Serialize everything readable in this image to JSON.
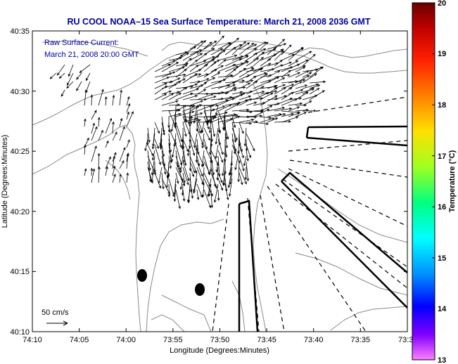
{
  "title": "RU COOL  NOAA–15  Sea Surface Temperature:  March 21, 2008 2036 GMT",
  "current_note": [
    "Raw Surface Current:",
    "March 21, 2008 20:00 GMT"
  ],
  "scale_label": "50 cm/s",
  "axes": {
    "xlabel": "Longitude (Degrees:Minutes)",
    "ylabel": "Latitude (Degrees:Minutes)",
    "xticks": [
      "74:10",
      "74:05",
      "74:00",
      "73:55",
      "73:50",
      "73:45",
      "73:40",
      "73:35",
      "73:3"
    ],
    "yticks": [
      "40:35",
      "40:30",
      "40:25",
      "40:20",
      "40:15",
      "40:10"
    ]
  },
  "colorbar": {
    "label": "Temperature (°C)",
    "ticks": [
      "20",
      "19",
      "18",
      "17",
      "16",
      "15",
      "14",
      "13"
    ],
    "min": 13,
    "max": 20
  },
  "colors": {
    "title": "#0000a0",
    "land": "#ffffff",
    "contour": "#8a8a8a",
    "vector": "#000000"
  }
}
